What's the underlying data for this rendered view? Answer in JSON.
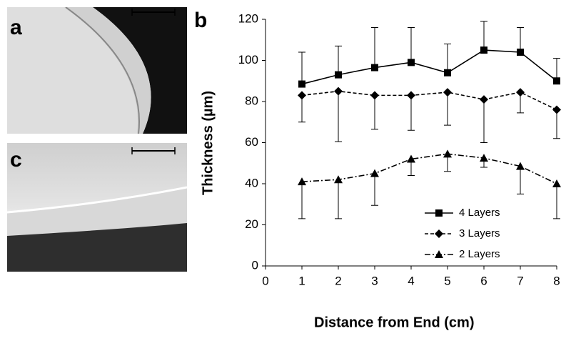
{
  "images": [
    {
      "label": "a"
    },
    {
      "label": "c"
    }
  ],
  "chart_data": {
    "type": "line",
    "panel_label": "b",
    "x_label": "Distance from End (cm)",
    "y_label": "Thickness (µm)",
    "x": [
      1,
      2,
      3,
      4,
      5,
      6,
      7,
      8
    ],
    "xlim": [
      0,
      8
    ],
    "xticks": [
      0,
      1,
      2,
      3,
      4,
      5,
      6,
      7,
      8
    ],
    "ylim": [
      0,
      120
    ],
    "yticks": [
      0,
      20,
      40,
      60,
      80,
      100,
      120
    ],
    "legend": "lower right",
    "series": [
      {
        "name": "4 Layers",
        "color": "#000000",
        "dash": "solid",
        "marker": "square",
        "error_direction": "up",
        "values": [
          88.5,
          93,
          96.5,
          99,
          94,
          105,
          104,
          90
        ],
        "errors": [
          15.5,
          14,
          19.5,
          17,
          14,
          14,
          12,
          11
        ]
      },
      {
        "name": "3 Layers",
        "color": "#000000",
        "dash": "dashed",
        "marker": "diamond",
        "error_direction": "down",
        "values": [
          83,
          85,
          83,
          83,
          84.5,
          81,
          84.5,
          76
        ],
        "errors": [
          13,
          24.5,
          16.5,
          17,
          16,
          21,
          10,
          14
        ]
      },
      {
        "name": "2 Layers",
        "color": "#000000",
        "dash": "dashdot",
        "marker": "triangle",
        "error_direction": "down",
        "values": [
          41,
          42,
          45,
          52,
          54.5,
          52.5,
          48.5,
          40
        ],
        "errors": [
          18,
          19,
          15.5,
          8,
          8.5,
          4.5,
          13.5,
          17
        ]
      }
    ]
  }
}
